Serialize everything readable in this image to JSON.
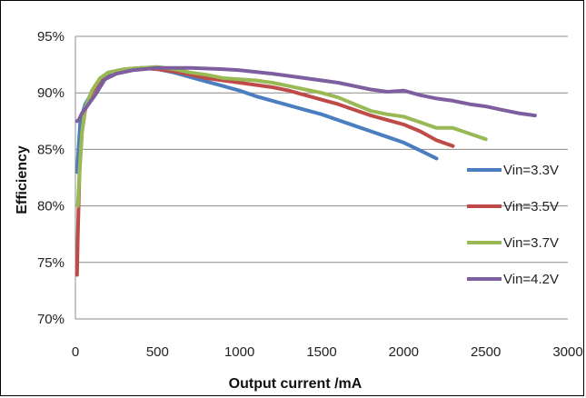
{
  "chart_data": {
    "type": "line",
    "title": "",
    "xlabel": "Output current /mA",
    "ylabel": "Efficiency",
    "xlim": [
      0,
      3000
    ],
    "ylim": [
      70,
      95
    ],
    "x_ticks": [
      "0",
      "500",
      "1000",
      "1500",
      "2000",
      "2500",
      "3000"
    ],
    "y_ticks": [
      "70%",
      "75%",
      "80%",
      "85%",
      "90%",
      "95%"
    ],
    "grid": "horizontal",
    "legend": "right",
    "series": [
      {
        "name": "Vin=3.3V",
        "color": "#4a7ebf",
        "points": [
          [
            10,
            83.0
          ],
          [
            30,
            87.5
          ],
          [
            60,
            89.0
          ],
          [
            100,
            90.0
          ],
          [
            150,
            91.0
          ],
          [
            200,
            91.7
          ],
          [
            300,
            92.0
          ],
          [
            400,
            92.2
          ],
          [
            500,
            92.1
          ],
          [
            600,
            91.8
          ],
          [
            700,
            91.4
          ],
          [
            800,
            91.0
          ],
          [
            900,
            90.6
          ],
          [
            1000,
            90.2
          ],
          [
            1100,
            89.7
          ],
          [
            1200,
            89.3
          ],
          [
            1300,
            88.9
          ],
          [
            1400,
            88.5
          ],
          [
            1500,
            88.1
          ],
          [
            1600,
            87.6
          ],
          [
            1700,
            87.1
          ],
          [
            1800,
            86.6
          ],
          [
            1900,
            86.1
          ],
          [
            2000,
            85.6
          ],
          [
            2100,
            84.9
          ],
          [
            2200,
            84.2
          ]
        ]
      },
      {
        "name": "Vin=3.5V",
        "color": "#be4b48",
        "points": [
          [
            10,
            73.9
          ],
          [
            15,
            77.5
          ],
          [
            25,
            83.0
          ],
          [
            40,
            86.5
          ],
          [
            60,
            88.5
          ],
          [
            100,
            90.0
          ],
          [
            150,
            91.2
          ],
          [
            200,
            91.8
          ],
          [
            300,
            92.1
          ],
          [
            400,
            92.2
          ],
          [
            500,
            92.1
          ],
          [
            600,
            91.9
          ],
          [
            700,
            91.6
          ],
          [
            800,
            91.3
          ],
          [
            900,
            91.1
          ],
          [
            1000,
            90.9
          ],
          [
            1100,
            90.7
          ],
          [
            1200,
            90.5
          ],
          [
            1300,
            90.2
          ],
          [
            1400,
            89.8
          ],
          [
            1500,
            89.4
          ],
          [
            1600,
            89.0
          ],
          [
            1700,
            88.5
          ],
          [
            1800,
            88.0
          ],
          [
            1900,
            87.6
          ],
          [
            2000,
            87.2
          ],
          [
            2100,
            86.6
          ],
          [
            2200,
            85.8
          ],
          [
            2300,
            85.3
          ]
        ]
      },
      {
        "name": "Vin=3.7V",
        "color": "#98b954",
        "points": [
          [
            15,
            80.0
          ],
          [
            25,
            83.0
          ],
          [
            40,
            86.5
          ],
          [
            60,
            88.7
          ],
          [
            100,
            90.2
          ],
          [
            150,
            91.3
          ],
          [
            200,
            91.8
          ],
          [
            300,
            92.1
          ],
          [
            400,
            92.2
          ],
          [
            500,
            92.3
          ],
          [
            600,
            92.1
          ],
          [
            700,
            91.8
          ],
          [
            800,
            91.6
          ],
          [
            900,
            91.3
          ],
          [
            1000,
            91.2
          ],
          [
            1100,
            91.1
          ],
          [
            1200,
            90.9
          ],
          [
            1300,
            90.6
          ],
          [
            1400,
            90.3
          ],
          [
            1500,
            90.0
          ],
          [
            1600,
            89.6
          ],
          [
            1700,
            89.0
          ],
          [
            1800,
            88.4
          ],
          [
            1900,
            88.1
          ],
          [
            2000,
            87.9
          ],
          [
            2100,
            87.4
          ],
          [
            2200,
            86.9
          ],
          [
            2300,
            86.9
          ],
          [
            2400,
            86.4
          ],
          [
            2500,
            85.9
          ]
        ]
      },
      {
        "name": "Vin=4.2V",
        "color": "#7d5fa0",
        "points": [
          [
            10,
            87.5
          ],
          [
            20,
            87.6
          ],
          [
            40,
            88.2
          ],
          [
            80,
            89.0
          ],
          [
            120,
            89.8
          ],
          [
            180,
            91.2
          ],
          [
            250,
            91.7
          ],
          [
            350,
            92.0
          ],
          [
            500,
            92.2
          ],
          [
            700,
            92.2
          ],
          [
            900,
            92.1
          ],
          [
            1000,
            92.0
          ],
          [
            1200,
            91.7
          ],
          [
            1400,
            91.3
          ],
          [
            1600,
            90.9
          ],
          [
            1800,
            90.3
          ],
          [
            1900,
            90.1
          ],
          [
            2000,
            90.2
          ],
          [
            2100,
            89.8
          ],
          [
            2200,
            89.5
          ],
          [
            2300,
            89.3
          ],
          [
            2400,
            89.0
          ],
          [
            2500,
            88.8
          ],
          [
            2600,
            88.5
          ],
          [
            2700,
            88.2
          ],
          [
            2800,
            88.0
          ]
        ]
      }
    ]
  }
}
